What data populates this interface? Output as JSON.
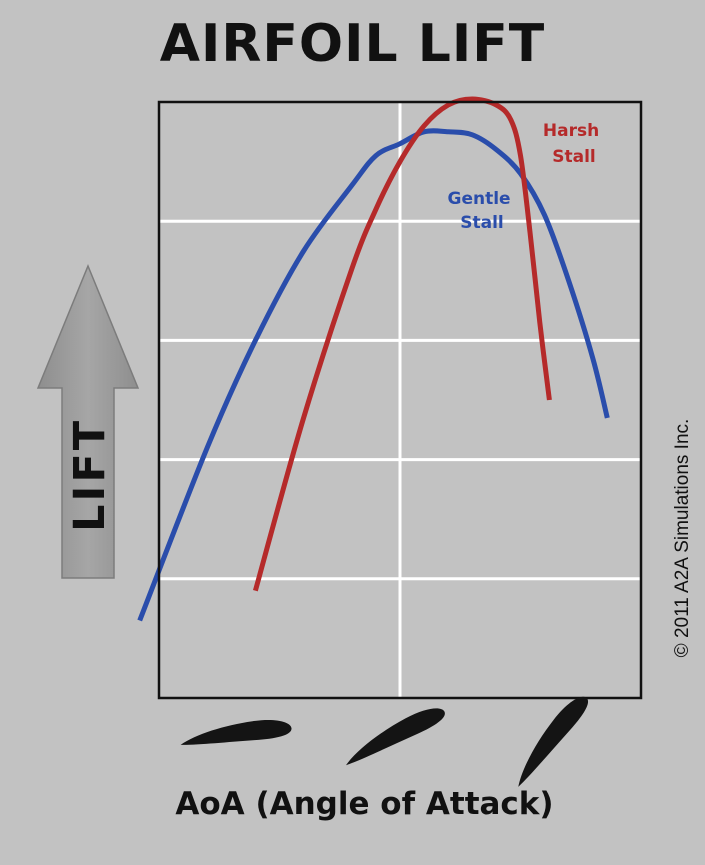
{
  "title": "AIRFOIL LIFT",
  "copyright": "© 2011 A2A Simulations Inc.",
  "lift_arrow_label": "LIFT",
  "chart_data": {
    "type": "line",
    "title": "AIRFOIL LIFT",
    "xlabel": "AoA (Angle of Attack)",
    "ylabel": "LIFT",
    "xlim": [
      0,
      100
    ],
    "ylim": [
      0,
      100
    ],
    "x_ticks_shown": false,
    "y_ticks_shown": false,
    "grid": true,
    "gridlines": {
      "vertical_at_x": [
        50
      ],
      "horizontal_at_y": [
        20,
        40,
        60,
        80
      ]
    },
    "series": [
      {
        "name": "",
        "color": "#2a4dab",
        "annotation": "Gentle\nStall",
        "x": [
          -4,
          10,
          20,
          30,
          40,
          45,
          50,
          55,
          60,
          65,
          70,
          75,
          80,
          85,
          90,
          93
        ],
        "y": [
          13,
          42,
          60,
          75,
          86,
          91,
          93,
          95,
          95,
          94.5,
          92,
          88,
          81,
          70,
          57,
          47
        ]
      },
      {
        "name": "",
        "color": "#b52a2a",
        "annotation": "Harsh\nStall",
        "x": [
          20,
          30,
          40,
          45,
          50,
          55,
          60,
          65,
          70,
          73,
          75,
          77,
          79,
          81
        ],
        "y": [
          18,
          47,
          72,
          82,
          90,
          96,
          99.5,
          100.5,
          99.5,
          97,
          91,
          78,
          63,
          50
        ]
      }
    ]
  },
  "airfoils": [
    {
      "name": "airfoil-low-aoa",
      "angle_deg": -6
    },
    {
      "name": "airfoil-mid-aoa",
      "angle_deg": -26
    },
    {
      "name": "airfoil-high-aoa",
      "angle_deg": -50
    }
  ],
  "colors": {
    "background": "#c2c2c2",
    "plot_background": "#c2c2c2",
    "grid": "#ffffff",
    "text": "#111111",
    "arrow": "#9a9a9a"
  }
}
